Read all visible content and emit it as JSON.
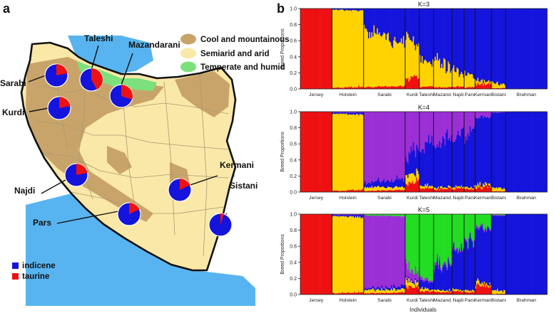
{
  "colors": {
    "red": "#EE1111",
    "yellow": "#FFD200",
    "blue": "#1414DC",
    "purple": "#9B2FD6",
    "green": "#22DD22",
    "cool_mountainous": "#C9A46A",
    "semiarid_arid": "#FAE8A8",
    "temperate_humid": "#7CE07C",
    "water": "#58B4F0",
    "border": "#111111",
    "province_line": "#A89A72",
    "axis": "#222222"
  },
  "panel_a": {
    "panel_label": "a",
    "legend_regions": [
      {
        "label": "Cool and mountainous",
        "color_key": "cool_mountainous"
      },
      {
        "label": "Semiarid and arid",
        "color_key": "semiarid_arid"
      },
      {
        "label": "Temperate and humid",
        "color_key": "temperate_humid"
      }
    ],
    "legend_ancestry": [
      {
        "label": "indicene",
        "color_key": "blue"
      },
      {
        "label": "taurine",
        "color_key": "red"
      }
    ],
    "breeds": [
      {
        "name": "Taleshi",
        "taurine_fraction": 0.42
      },
      {
        "name": "Mazandarani",
        "taurine_fraction": 0.3
      },
      {
        "name": "Sarabi",
        "taurine_fraction": 0.22
      },
      {
        "name": "Kurdi",
        "taurine_fraction": 0.22
      },
      {
        "name": "Najdi",
        "taurine_fraction": 0.22
      },
      {
        "name": "Kermani",
        "taurine_fraction": 0.18
      },
      {
        "name": "Pars",
        "taurine_fraction": 0.18
      },
      {
        "name": "Sistani",
        "taurine_fraction": 0.05
      }
    ]
  },
  "chart_data": {
    "type": "stacked-bar (admixture / STRUCTURE plot)",
    "panel_label": "b",
    "xlabel": "Individuals",
    "ylabel": "Breed Proportions",
    "ylim": [
      0,
      1
    ],
    "yticks": [
      "0.0",
      "0.2",
      "0.4",
      "0.6",
      "0.8",
      "1.0"
    ],
    "groups": [
      "Jersey",
      "Holstein",
      "Sarabi",
      "Kurdi",
      "Taleshi",
      "Mazand.",
      "Najdi",
      "Pars",
      "Kermani",
      "Sistani",
      "Brahman"
    ],
    "group_sizes": [
      29,
      29,
      38,
      13,
      13,
      17,
      11,
      10,
      15,
      13,
      38
    ],
    "plots": [
      {
        "title": "K=3",
        "component_colors": [
          "red",
          "yellow",
          "blue"
        ],
        "group_means": [
          [
            1.0,
            0.0,
            0.0
          ],
          [
            0.02,
            0.96,
            0.02
          ],
          [
            0.03,
            0.62,
            0.35
          ],
          [
            0.14,
            0.44,
            0.42
          ],
          [
            0.03,
            0.34,
            0.63
          ],
          [
            0.02,
            0.3,
            0.68
          ],
          [
            0.03,
            0.18,
            0.79
          ],
          [
            0.02,
            0.16,
            0.82
          ],
          [
            0.06,
            0.04,
            0.9
          ],
          [
            0.01,
            0.05,
            0.94
          ],
          [
            0.0,
            0.0,
            1.0
          ]
        ]
      },
      {
        "title": "K=4",
        "component_colors": [
          "red",
          "yellow",
          "blue",
          "purple"
        ],
        "group_means": [
          [
            1.0,
            0.0,
            0.0,
            0.0
          ],
          [
            0.02,
            0.95,
            0.02,
            0.01
          ],
          [
            0.02,
            0.04,
            0.08,
            0.86
          ],
          [
            0.12,
            0.1,
            0.28,
            0.5
          ],
          [
            0.05,
            0.03,
            0.5,
            0.42
          ],
          [
            0.04,
            0.02,
            0.58,
            0.36
          ],
          [
            0.05,
            0.02,
            0.63,
            0.3
          ],
          [
            0.04,
            0.02,
            0.7,
            0.24
          ],
          [
            0.06,
            0.03,
            0.84,
            0.07
          ],
          [
            0.01,
            0.04,
            0.94,
            0.01
          ],
          [
            0.0,
            0.0,
            1.0,
            0.0
          ]
        ]
      },
      {
        "title": "K=5",
        "component_colors": [
          "red",
          "yellow",
          "blue",
          "purple",
          "green"
        ],
        "group_means": [
          [
            1.0,
            0.0,
            0.0,
            0.0,
            0.0
          ],
          [
            0.02,
            0.95,
            0.02,
            0.01,
            0.0
          ],
          [
            0.02,
            0.04,
            0.03,
            0.89,
            0.02
          ],
          [
            0.1,
            0.06,
            0.02,
            0.12,
            0.7
          ],
          [
            0.04,
            0.03,
            0.1,
            0.03,
            0.8
          ],
          [
            0.03,
            0.02,
            0.3,
            0.03,
            0.62
          ],
          [
            0.04,
            0.02,
            0.5,
            0.02,
            0.42
          ],
          [
            0.03,
            0.02,
            0.62,
            0.02,
            0.31
          ],
          [
            0.1,
            0.03,
            0.7,
            0.02,
            0.15
          ],
          [
            0.01,
            0.04,
            0.93,
            0.01,
            0.01
          ],
          [
            0.0,
            0.0,
            1.0,
            0.0,
            0.0
          ]
        ]
      }
    ]
  }
}
